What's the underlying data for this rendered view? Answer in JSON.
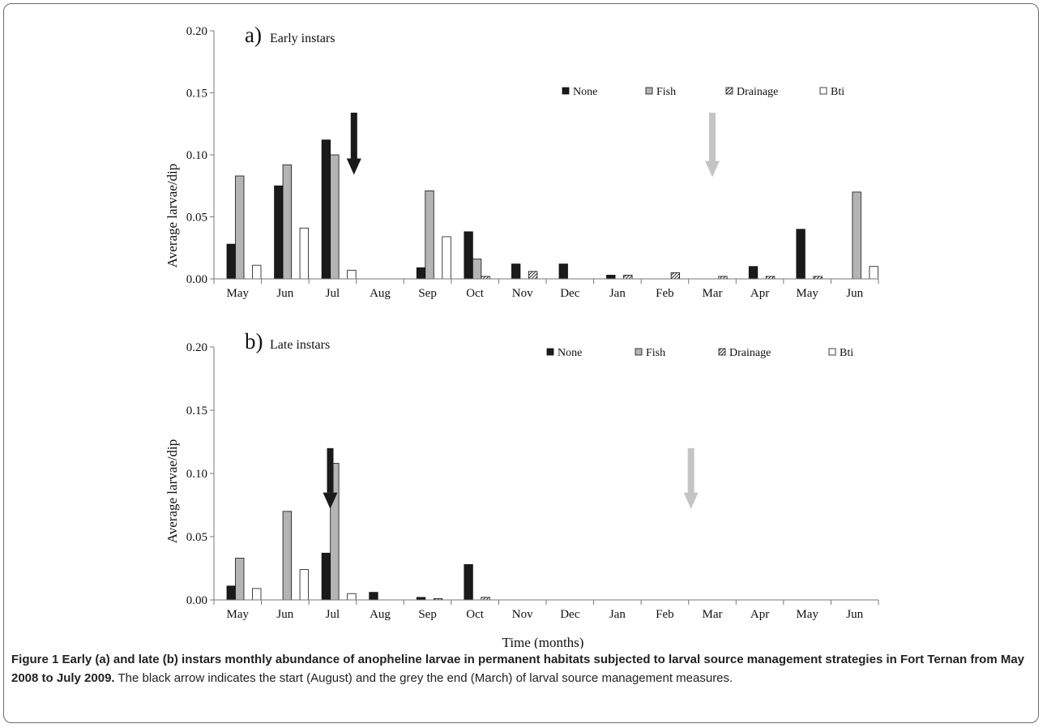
{
  "chart_data": [
    {
      "type": "bar",
      "panel_label": "a)",
      "title": "Early instars",
      "xlabel": "",
      "ylabel": "Average larvae/dip",
      "ylim": [
        0,
        0.2
      ],
      "yticks": [
        "0.00",
        "0.05",
        "0.10",
        "0.15",
        "0.20"
      ],
      "categories": [
        "May",
        "Jun",
        "Jul",
        "Aug",
        "Sep",
        "Oct",
        "Nov",
        "Dec",
        "Jan",
        "Feb",
        "Mar",
        "Apr",
        "May",
        "Jun"
      ],
      "legend_position": "top-right",
      "series": [
        {
          "name": "None",
          "values": [
            0.028,
            0.075,
            0.112,
            0,
            0.009,
            0.038,
            0.012,
            0.012,
            0.003,
            0,
            0,
            0.01,
            0.04,
            0
          ]
        },
        {
          "name": "Fish",
          "values": [
            0.083,
            0.092,
            0.1,
            0,
            0.071,
            0.016,
            0,
            0,
            0,
            0,
            0,
            0,
            0,
            0.07
          ]
        },
        {
          "name": "Drainage",
          "values": [
            0,
            0,
            0,
            0,
            0,
            0.002,
            0.006,
            0,
            0.003,
            0.005,
            0.002,
            0.002,
            0.002,
            0
          ]
        },
        {
          "name": "Bti",
          "values": [
            0.011,
            0.041,
            0.007,
            0,
            0.034,
            0,
            0,
            0,
            0,
            0,
            0,
            0,
            0,
            0.01
          ]
        }
      ],
      "arrows": [
        {
          "color": "black",
          "category_index": 2.95,
          "top": 0.134,
          "tip": 0.084
        },
        {
          "color": "grey",
          "category_index": 10.5,
          "top": 0.134,
          "tip": 0.082
        }
      ]
    },
    {
      "type": "bar",
      "panel_label": "b)",
      "title": "Late instars",
      "xlabel": "Time (months)",
      "ylabel": "Average larvae/dip",
      "ylim": [
        0,
        0.2
      ],
      "yticks": [
        "0.00",
        "0.05",
        "0.10",
        "0.15",
        "0.20"
      ],
      "categories": [
        "May",
        "Jun",
        "Jul",
        "Aug",
        "Sep",
        "Oct",
        "Nov",
        "Dec",
        "Jan",
        "Feb",
        "Mar",
        "Apr",
        "May",
        "Jun"
      ],
      "legend_position": "top-right",
      "series": [
        {
          "name": "None",
          "values": [
            0.011,
            0,
            0.037,
            0.006,
            0.002,
            0.028,
            0,
            0,
            0,
            0,
            0,
            0,
            0,
            0
          ]
        },
        {
          "name": "Fish",
          "values": [
            0.033,
            0.07,
            0.108,
            0,
            0,
            0,
            0,
            0,
            0,
            0,
            0,
            0,
            0,
            0
          ]
        },
        {
          "name": "Drainage",
          "values": [
            0,
            0,
            0,
            0,
            0.001,
            0.002,
            0,
            0,
            0,
            0,
            0,
            0,
            0,
            0
          ]
        },
        {
          "name": "Bti",
          "values": [
            0.009,
            0.024,
            0.005,
            0,
            0,
            0,
            0,
            0,
            0,
            0,
            0,
            0,
            0,
            0
          ]
        }
      ],
      "arrows": [
        {
          "color": "black",
          "category_index": 2.45,
          "top": 0.12,
          "tip": 0.072
        },
        {
          "color": "grey",
          "category_index": 10.05,
          "top": 0.12,
          "tip": 0.072
        }
      ]
    }
  ],
  "colors": {
    "None": "#1a1a1a",
    "Fish": "#b4b4b4",
    "Drainage": "#ffffff",
    "Bti": "#ffffff",
    "black_arrow": "#1a1a1a",
    "grey_arrow": "#c4c4c4"
  },
  "caption": {
    "title": "Figure 1 Early (a) and late (b) instars monthly abundance of anopheline larvae in permanent habitats subjected to larval source management strategies in Fort Ternan from May 2008 to July 2009.",
    "text": "The black arrow indicates the start (August) and the grey the end (March) of larval source management measures."
  }
}
